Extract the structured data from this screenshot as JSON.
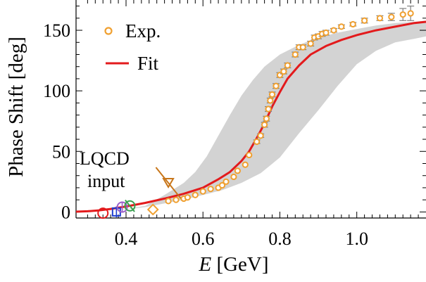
{
  "chart_data": {
    "type": "scatter",
    "title": "",
    "xlabel_var": "E",
    "xlabel_unit": "[GeV]",
    "ylabel": "Phase Shift [deg]",
    "xlim": [
      0.27,
      1.18
    ],
    "ylim": [
      -5,
      175
    ],
    "x_ticks": [
      "0.4",
      "0.6",
      "0.8",
      "1.0"
    ],
    "y_ticks": [
      "0",
      "50",
      "100",
      "150"
    ],
    "legend": {
      "position": "top-left",
      "entries": [
        "Exp.",
        "Fit"
      ]
    },
    "grid": false,
    "colors": {
      "exp": "#f0a030",
      "fit": "#e31a1c",
      "band": "#d3d3d3",
      "errorbar": "#808080",
      "lqcd_circle_red": "#e31a1c",
      "lqcd_square_blue": "#1f3fd0",
      "lqcd_circle_purple": "#9a5fc8",
      "lqcd_circle_green": "#3aa050",
      "lqcd_diamond": "#f0a030",
      "lqcd_triangle": "#c8761a"
    },
    "series": [
      {
        "name": "Exp.",
        "kind": "points",
        "points": [
          [
            0.51,
            9
          ],
          [
            0.53,
            10
          ],
          [
            0.55,
            11
          ],
          [
            0.56,
            12
          ],
          [
            0.58,
            14
          ],
          [
            0.6,
            17
          ],
          [
            0.62,
            19
          ],
          [
            0.64,
            20
          ],
          [
            0.65,
            22
          ],
          [
            0.66,
            25
          ],
          [
            0.68,
            29
          ],
          [
            0.69,
            34
          ],
          [
            0.71,
            39
          ],
          [
            0.72,
            47
          ],
          [
            0.74,
            58
          ],
          [
            0.75,
            63
          ],
          [
            0.76,
            72
          ],
          [
            0.765,
            77
          ],
          [
            0.77,
            85
          ],
          [
            0.775,
            92
          ],
          [
            0.78,
            97
          ],
          [
            0.79,
            104
          ],
          [
            0.8,
            113
          ],
          [
            0.81,
            116
          ],
          [
            0.82,
            121
          ],
          [
            0.84,
            130
          ],
          [
            0.85,
            136
          ],
          [
            0.86,
            136
          ],
          [
            0.88,
            139
          ],
          [
            0.89,
            144
          ],
          [
            0.9,
            145
          ],
          [
            0.91,
            147
          ],
          [
            0.92,
            148
          ],
          [
            0.94,
            150
          ],
          [
            0.96,
            153
          ],
          [
            0.99,
            155
          ],
          [
            1.02,
            158
          ],
          [
            1.06,
            160
          ],
          [
            1.09,
            161
          ],
          [
            1.12,
            163
          ],
          [
            1.14,
            164
          ]
        ],
        "errors": [
          0.5,
          0.5,
          0.5,
          0.5,
          0.5,
          0.5,
          0.5,
          0.5,
          0.5,
          0.5,
          0.5,
          0.5,
          1,
          1,
          1.5,
          1.5,
          2,
          2,
          2,
          2,
          2,
          2,
          2,
          2,
          2,
          2,
          2,
          2,
          2,
          2,
          2,
          2,
          2,
          1.5,
          1.5,
          1.5,
          2,
          2,
          3,
          5,
          6
        ]
      },
      {
        "name": "Fit",
        "kind": "line",
        "points": [
          [
            0.27,
            0.2
          ],
          [
            0.3,
            0.6
          ],
          [
            0.33,
            1.3
          ],
          [
            0.36,
            2.5
          ],
          [
            0.4,
            4.5
          ],
          [
            0.45,
            7.5
          ],
          [
            0.5,
            11
          ],
          [
            0.55,
            15
          ],
          [
            0.6,
            20
          ],
          [
            0.64,
            27
          ],
          [
            0.67,
            33
          ],
          [
            0.7,
            42
          ],
          [
            0.72,
            50
          ],
          [
            0.74,
            61
          ],
          [
            0.76,
            73
          ],
          [
            0.78,
            87
          ],
          [
            0.8,
            99
          ],
          [
            0.82,
            110
          ],
          [
            0.85,
            121
          ],
          [
            0.88,
            130
          ],
          [
            0.92,
            137
          ],
          [
            0.96,
            142
          ],
          [
            1.0,
            146
          ],
          [
            1.05,
            150
          ],
          [
            1.1,
            153
          ],
          [
            1.15,
            156
          ],
          [
            1.18,
            157
          ]
        ]
      },
      {
        "name": "",
        "kind": "band",
        "upper": [
          [
            0.36,
            0.5
          ],
          [
            0.45,
            5
          ],
          [
            0.5,
            14
          ],
          [
            0.55,
            24
          ],
          [
            0.58,
            33
          ],
          [
            0.61,
            46
          ],
          [
            0.64,
            63
          ],
          [
            0.67,
            80
          ],
          [
            0.7,
            96
          ],
          [
            0.73,
            109
          ],
          [
            0.76,
            120
          ],
          [
            0.8,
            130
          ],
          [
            0.85,
            138
          ],
          [
            0.9,
            144
          ],
          [
            0.95,
            148
          ],
          [
            1.0,
            151
          ],
          [
            1.05,
            154
          ],
          [
            1.1,
            156
          ],
          [
            1.15,
            157
          ],
          [
            1.18,
            158
          ]
        ],
        "lower": [
          [
            1.18,
            145
          ],
          [
            1.15,
            143
          ],
          [
            1.1,
            140
          ],
          [
            1.05,
            133
          ],
          [
            1.0,
            122
          ],
          [
            0.95,
            104
          ],
          [
            0.9,
            84
          ],
          [
            0.85,
            65
          ],
          [
            0.8,
            45
          ],
          [
            0.75,
            32
          ],
          [
            0.7,
            24
          ],
          [
            0.65,
            18
          ],
          [
            0.6,
            14
          ],
          [
            0.55,
            10
          ],
          [
            0.5,
            7
          ],
          [
            0.45,
            4
          ],
          [
            0.4,
            2
          ],
          [
            0.36,
            0.5
          ]
        ]
      }
    ],
    "lqcd_points": [
      {
        "shape": "circle",
        "color_key": "lqcd_circle_red",
        "x": 0.34,
        "y": -1
      },
      {
        "shape": "square",
        "color_key": "lqcd_square_blue",
        "x": 0.375,
        "y": 0,
        "err": 1
      },
      {
        "shape": "circle",
        "color_key": "lqcd_circle_purple",
        "x": 0.39,
        "y": 4,
        "err": 1
      },
      {
        "shape": "circle",
        "color_key": "lqcd_circle_green",
        "x": 0.41,
        "y": 5,
        "err": 3,
        "slanted": true
      },
      {
        "shape": "diamond",
        "color_key": "lqcd_diamond",
        "x": 0.47,
        "y": 2
      },
      {
        "shape": "triangle-down",
        "color_key": "lqcd_triangle",
        "x": 0.51,
        "y": 24,
        "err": 8,
        "slanted": true
      }
    ],
    "annotation": {
      "lines": [
        "LQCD",
        "input"
      ]
    }
  }
}
